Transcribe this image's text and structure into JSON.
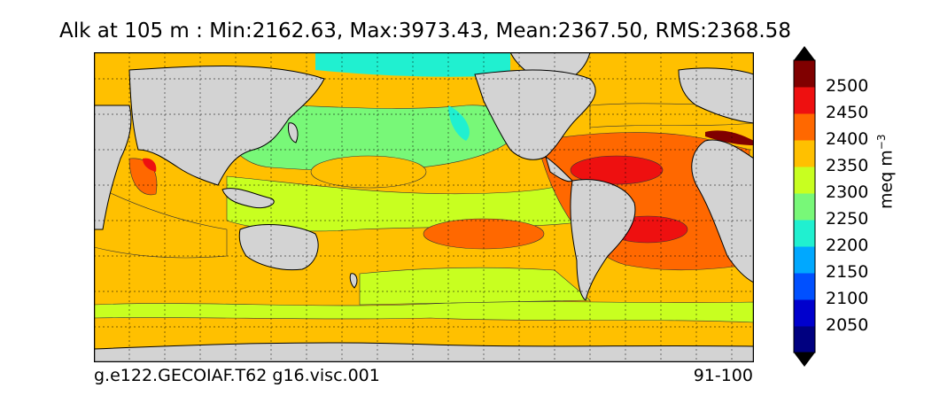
{
  "title": "Alk at 105 m : Min:2162.63, Max:3973.43, Mean:2367.50, RMS:2368.58",
  "footer": {
    "left": "g.e122.GECOIAF.T62 g16.visc.001",
    "right": "91-100"
  },
  "colorbar": {
    "units_base": "meq m",
    "units_exp": "−3",
    "ticks": [
      "2500",
      "2450",
      "2400",
      "2350",
      "2300",
      "2250",
      "2200",
      "2150",
      "2100",
      "2050"
    ],
    "colors": [
      "#000080",
      "#0000cd",
      "#0050ff",
      "#00a8ff",
      "#20f0d0",
      "#78f878",
      "#c8ff20",
      "#ffc000",
      "#ff6800",
      "#ee1010",
      "#800000"
    ]
  },
  "map": {
    "land_color": "#d3d3d3",
    "projection": "global lat-lon, centered Pacific",
    "gridlines": true
  }
}
